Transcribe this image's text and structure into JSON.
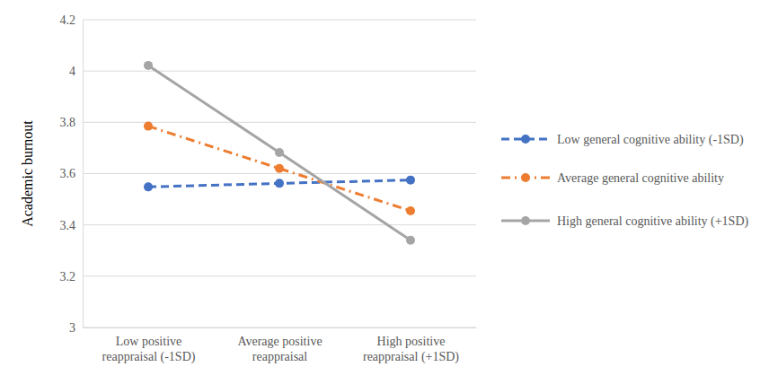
{
  "chart_data": {
    "type": "line",
    "y_label": "Academic burnout",
    "categories": [
      "Low positive reappraisal (-1SD)",
      "Average positive reappraisal",
      "High positive reappraisal (+1SD)"
    ],
    "series": [
      {
        "name": "Low general cognitive ability (-1SD)",
        "color": "#4472c4",
        "line_style": "dashed",
        "marker": "circle",
        "values": [
          3.548,
          3.562,
          3.575
        ]
      },
      {
        "name": "Average general cognitive ability",
        "color": "#ed7d31",
        "line_style": "dashdot",
        "marker": "circle",
        "values": [
          3.785,
          3.62,
          3.455
        ]
      },
      {
        "name": "High general cognitive ability (+1SD)",
        "color": "#a5a5a5",
        "line_style": "solid",
        "marker": "circle",
        "values": [
          4.022,
          3.682,
          3.34
        ]
      }
    ],
    "ylim": [
      3,
      4.2
    ],
    "yticks": [
      3,
      3.2,
      3.4,
      3.6,
      3.8,
      4,
      4.2
    ],
    "grid": true,
    "legend": "right"
  }
}
